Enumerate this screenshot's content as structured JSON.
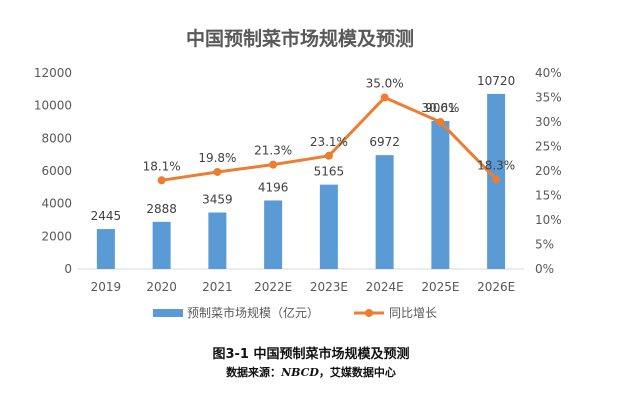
{
  "chart_data": {
    "type": "bar",
    "title": "中国预制菜市场规模及预测",
    "categories": [
      "2019",
      "2020",
      "2021",
      "2022E",
      "2023E",
      "2024E",
      "2025E",
      "2026E"
    ],
    "series": [
      {
        "name": "预制菜市场规模（亿元）",
        "type": "bar",
        "axis": "left",
        "color": "#5B9BD5",
        "values": [
          2445,
          2888,
          3459,
          4196,
          5165,
          6972,
          9061,
          10720
        ],
        "labels": [
          "2445",
          "2888",
          "3459",
          "4196",
          "5165",
          "6972",
          "9061",
          "10720"
        ]
      },
      {
        "name": "同比增长",
        "type": "line",
        "axis": "right",
        "color": "#ED7D31",
        "values": [
          null,
          18.1,
          19.8,
          21.3,
          23.1,
          35.0,
          30.0,
          18.3
        ],
        "labels": [
          "",
          "18.1%",
          "19.8%",
          "21.3%",
          "23.1%",
          "35.0%",
          "30.0%",
          "18.3%"
        ]
      }
    ],
    "y_left": {
      "lim": [
        0,
        12000
      ],
      "ticks": [
        "0",
        "2000",
        "4000",
        "6000",
        "8000",
        "10000",
        "12000"
      ]
    },
    "y_right": {
      "lim": [
        0,
        40
      ],
      "ticks": [
        "0%",
        "5%",
        "10%",
        "15%",
        "20%",
        "25%",
        "30%",
        "35%",
        "40%"
      ]
    },
    "grid": false,
    "legend": "bottom"
  },
  "caption": {
    "title": "图3-1    中国预制菜市场规模及预测",
    "source_prefix": "数据来源：",
    "source_em": "NBCD",
    "source_suffix": "，艾媒数据中心"
  }
}
